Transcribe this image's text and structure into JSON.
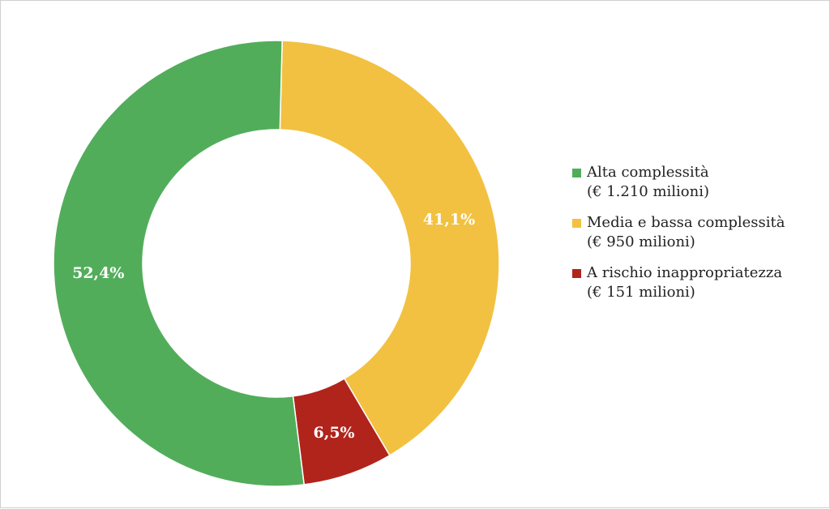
{
  "chart_data": {
    "type": "pie",
    "categories": [
      "Alta complessità",
      "Media e bassa complessità",
      "A rischio inappropriatezza"
    ],
    "values": [
      52.4,
      41.1,
      6.5
    ],
    "value_labels": [
      "52,4%",
      "41,1%",
      "6,5%"
    ],
    "amounts": [
      "(€ 1.210 milioni)",
      "(€ 950 milioni)",
      "(€ 151 milioni)"
    ],
    "colors": [
      "#52ad5b",
      "#f2c141",
      "#b0241c"
    ],
    "legend_position": "right",
    "title": ""
  }
}
